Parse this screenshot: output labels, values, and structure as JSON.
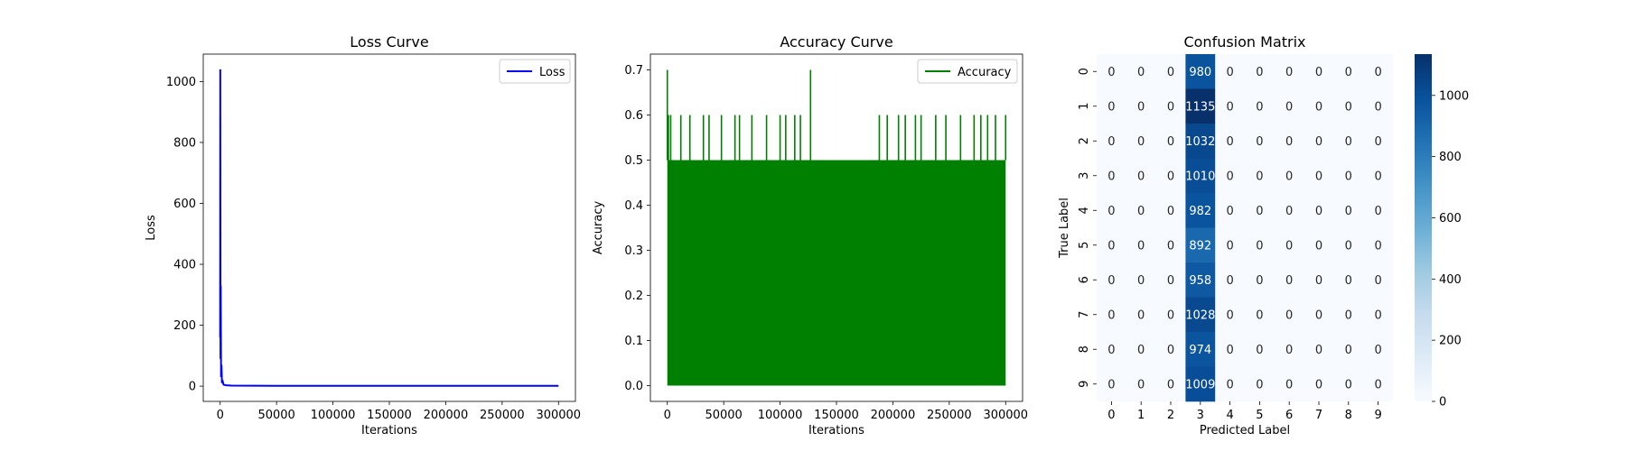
{
  "chart_data": [
    {
      "type": "line",
      "title": "Loss Curve",
      "xlabel": "Iterations",
      "ylabel": "Loss",
      "xlim": [
        -15000,
        315000
      ],
      "ylim": [
        -50,
        1090
      ],
      "xticks": [
        0,
        50000,
        100000,
        150000,
        200000,
        250000,
        300000
      ],
      "xtick_labels": [
        "0",
        "50000",
        "100000",
        "150000",
        "200000",
        "250000",
        "300000"
      ],
      "yticks": [
        0,
        200,
        400,
        600,
        800,
        1000
      ],
      "ytick_labels": [
        "0",
        "200",
        "400",
        "600",
        "800",
        "1000"
      ],
      "legend_position": "top-right",
      "grid": false,
      "series": [
        {
          "name": "Loss",
          "color": "#0000ff",
          "x": [
            0,
            100,
            300,
            500,
            800,
            1200,
            1600,
            2000,
            3000,
            5000,
            10000,
            50000,
            100000,
            150000,
            200000,
            250000,
            300000
          ],
          "y": [
            160,
            1040,
            90,
            330,
            30,
            70,
            10,
            20,
            5,
            3,
            2,
            1,
            1,
            1,
            1,
            1,
            1
          ]
        }
      ]
    },
    {
      "type": "line",
      "title": "Accuracy Curve",
      "xlabel": "Iterations",
      "ylabel": "Accuracy",
      "xlim": [
        -15000,
        315000
      ],
      "ylim": [
        -0.035,
        0.735
      ],
      "xticks": [
        0,
        50000,
        100000,
        150000,
        200000,
        250000,
        300000
      ],
      "xtick_labels": [
        "0",
        "50000",
        "100000",
        "150000",
        "200000",
        "250000",
        "300000"
      ],
      "yticks": [
        0.0,
        0.1,
        0.2,
        0.3,
        0.4,
        0.5,
        0.6,
        0.7
      ],
      "ytick_labels": [
        "0.0",
        "0.1",
        "0.2",
        "0.3",
        "0.4",
        "0.5",
        "0.6",
        "0.7"
      ],
      "legend_position": "top-right",
      "grid": false,
      "series": [
        {
          "name": "Accuracy",
          "color": "#008000",
          "x_range": [
            0,
            300000
          ],
          "y_min": 0.0,
          "y_typical_max": 0.5,
          "peaks": [
            {
              "x": 0,
              "y": 0.7
            },
            {
              "x": 1000,
              "y": 0.6
            },
            {
              "x": 3000,
              "y": 0.6
            },
            {
              "x": 12000,
              "y": 0.6
            },
            {
              "x": 20000,
              "y": 0.6
            },
            {
              "x": 32000,
              "y": 0.6
            },
            {
              "x": 37000,
              "y": 0.6
            },
            {
              "x": 48000,
              "y": 0.6
            },
            {
              "x": 60000,
              "y": 0.6
            },
            {
              "x": 64000,
              "y": 0.6
            },
            {
              "x": 75000,
              "y": 0.6
            },
            {
              "x": 88000,
              "y": 0.6
            },
            {
              "x": 100000,
              "y": 0.6
            },
            {
              "x": 105000,
              "y": 0.6
            },
            {
              "x": 113000,
              "y": 0.6
            },
            {
              "x": 118000,
              "y": 0.6
            },
            {
              "x": 127000,
              "y": 0.7
            },
            {
              "x": 188000,
              "y": 0.6
            },
            {
              "x": 195000,
              "y": 0.6
            },
            {
              "x": 205000,
              "y": 0.6
            },
            {
              "x": 211000,
              "y": 0.6
            },
            {
              "x": 220000,
              "y": 0.6
            },
            {
              "x": 225000,
              "y": 0.6
            },
            {
              "x": 238000,
              "y": 0.6
            },
            {
              "x": 247000,
              "y": 0.6
            },
            {
              "x": 260000,
              "y": 0.6
            },
            {
              "x": 272000,
              "y": 0.6
            },
            {
              "x": 278000,
              "y": 0.6
            },
            {
              "x": 284000,
              "y": 0.6
            },
            {
              "x": 291000,
              "y": 0.6
            },
            {
              "x": 300000,
              "y": 0.6
            }
          ]
        }
      ]
    },
    {
      "type": "heatmap",
      "title": "Confusion Matrix",
      "xlabel": "Predicted Label",
      "ylabel": "True Label",
      "x_categories": [
        "0",
        "1",
        "2",
        "3",
        "4",
        "5",
        "6",
        "7",
        "8",
        "9"
      ],
      "y_categories": [
        "0",
        "1",
        "2",
        "3",
        "4",
        "5",
        "6",
        "7",
        "8",
        "9"
      ],
      "colormap": "Blues",
      "color_range": [
        0,
        1135
      ],
      "colorbar_ticks": [
        0,
        200,
        400,
        600,
        800,
        1000
      ],
      "colorbar_tick_labels": [
        "0",
        "200",
        "400",
        "600",
        "800",
        "1000"
      ],
      "matrix": [
        [
          0,
          0,
          0,
          980,
          0,
          0,
          0,
          0,
          0,
          0
        ],
        [
          0,
          0,
          0,
          1135,
          0,
          0,
          0,
          0,
          0,
          0
        ],
        [
          0,
          0,
          0,
          1032,
          0,
          0,
          0,
          0,
          0,
          0
        ],
        [
          0,
          0,
          0,
          1010,
          0,
          0,
          0,
          0,
          0,
          0
        ],
        [
          0,
          0,
          0,
          982,
          0,
          0,
          0,
          0,
          0,
          0
        ],
        [
          0,
          0,
          0,
          892,
          0,
          0,
          0,
          0,
          0,
          0
        ],
        [
          0,
          0,
          0,
          958,
          0,
          0,
          0,
          0,
          0,
          0
        ],
        [
          0,
          0,
          0,
          1028,
          0,
          0,
          0,
          0,
          0,
          0
        ],
        [
          0,
          0,
          0,
          974,
          0,
          0,
          0,
          0,
          0,
          0
        ],
        [
          0,
          0,
          0,
          1009,
          0,
          0,
          0,
          0,
          0,
          0
        ]
      ]
    }
  ]
}
